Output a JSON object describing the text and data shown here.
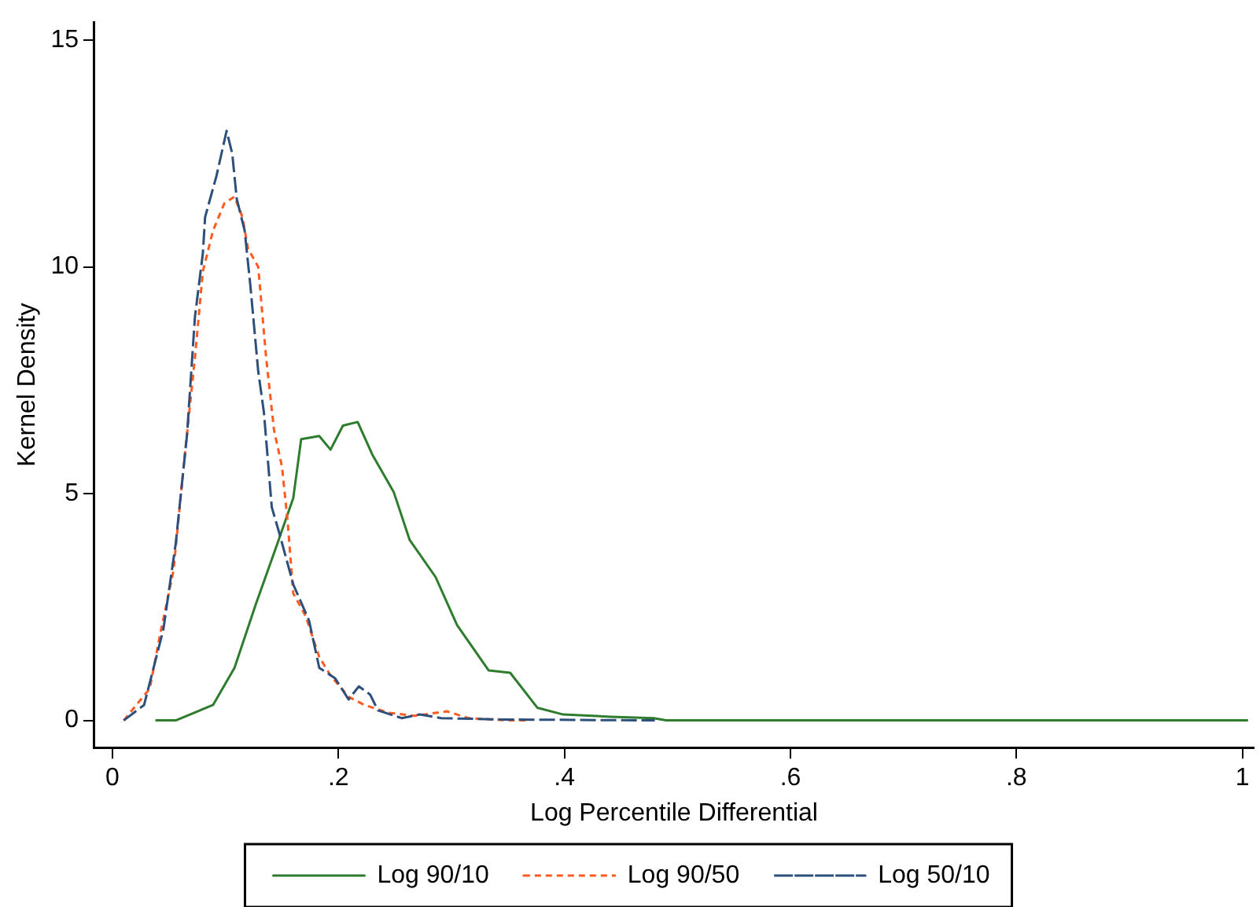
{
  "chart_data": {
    "type": "line",
    "xlabel": "Log Percentile Differential",
    "ylabel": "Kernel Density",
    "xlim": [
      -0.016,
      1.01
    ],
    "ylim": [
      -0.6,
      15.4
    ],
    "xticks": [
      0,
      {
        "value": 0.2,
        "label": ".2"
      },
      {
        "value": 0.4,
        "label": ".4"
      },
      {
        "value": 0.6,
        "label": ".6"
      },
      {
        "value": 0.8,
        "label": ".8"
      },
      1
    ],
    "yticks": [
      0,
      5,
      10,
      15
    ],
    "grid": false,
    "legend": "bottom",
    "marker": "none",
    "series": [
      {
        "name": "Log 90/10",
        "color": "#2e7d2e",
        "line_style": "solid",
        "x": [
          0.038,
          0.056,
          0.089,
          0.108,
          0.127,
          0.146,
          0.16,
          0.167,
          0.183,
          0.193,
          0.204,
          0.217,
          0.23,
          0.249,
          0.263,
          0.286,
          0.305,
          0.333,
          0.352,
          0.376,
          0.399,
          0.441,
          0.479,
          0.49,
          1.005
        ],
        "values": [
          0,
          0,
          0.34,
          1.16,
          2.57,
          3.9,
          4.9,
          6.2,
          6.27,
          5.97,
          6.5,
          6.58,
          5.86,
          5.03,
          3.98,
          3.16,
          2.1,
          1.1,
          1.05,
          0.28,
          0.13,
          0.08,
          0.05,
          0,
          0
        ]
      },
      {
        "name": "Log 90/50",
        "color": "#ff5a1f",
        "line_style": "dashed",
        "x": [
          0.01,
          0.033,
          0.042,
          0.054,
          0.063,
          0.073,
          0.08,
          0.089,
          0.099,
          0.108,
          0.115,
          0.12,
          0.129,
          0.136,
          0.143,
          0.15,
          0.155,
          0.16,
          0.171,
          0.183,
          0.193,
          0.209,
          0.223,
          0.244,
          0.267,
          0.296,
          0.315,
          0.35,
          0.37
        ],
        "values": [
          0,
          0.7,
          1.87,
          3.3,
          5.6,
          8,
          9.9,
          10.8,
          11.4,
          11.55,
          11.1,
          10.4,
          10,
          8,
          6.4,
          5.6,
          4.4,
          2.8,
          2.3,
          1.4,
          0.99,
          0.52,
          0.34,
          0.17,
          0.1,
          0.2,
          0.05,
          0,
          0
        ]
      },
      {
        "name": "Log 50/10",
        "color": "#2c4f7c",
        "line_style": "dashed",
        "x": [
          0.01,
          0.028,
          0.045,
          0.056,
          0.066,
          0.073,
          0.08,
          0.082,
          0.092,
          0.101,
          0.106,
          0.11,
          0.117,
          0.122,
          0.129,
          0.134,
          0.141,
          0.148,
          0.16,
          0.174,
          0.183,
          0.197,
          0.209,
          0.218,
          0.228,
          0.235,
          0.256,
          0.272,
          0.291,
          0.345,
          0.48
        ],
        "values": [
          0,
          0.34,
          2,
          3.9,
          6.3,
          8.9,
          10.3,
          11.1,
          12,
          13,
          12.5,
          11.5,
          10.8,
          9.6,
          7.7,
          6.8,
          4.7,
          4.1,
          3,
          2.2,
          1.16,
          0.93,
          0.46,
          0.75,
          0.57,
          0.22,
          0.05,
          0.13,
          0.05,
          0.02,
          0
        ]
      }
    ]
  }
}
